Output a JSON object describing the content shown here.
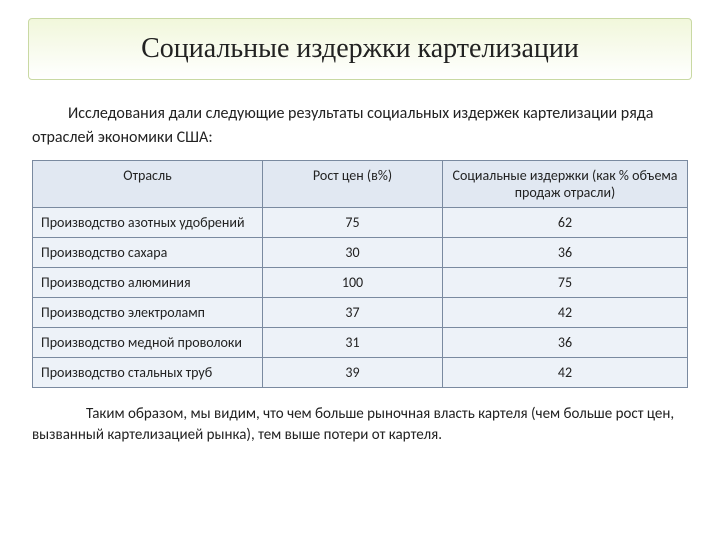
{
  "title": "Социальные издержки картелизации",
  "intro": "Исследования дали следующие результаты социальных издержек картелизации ряда отраслей экономики США:",
  "table": {
    "columns": [
      "Отрасль",
      "Рост цен (в%)",
      "Социальные издержки (как % объема продаж отрасли)"
    ],
    "rows": [
      [
        "Производство азотных удобрений",
        "75",
        "62"
      ],
      [
        "Производство сахара",
        "30",
        "36"
      ],
      [
        "Производство алюминия",
        "100",
        "75"
      ],
      [
        "Производство электроламп",
        "37",
        "42"
      ],
      [
        "Производство медной проволоки",
        "31",
        "36"
      ],
      [
        "Производство стальных труб",
        "39",
        "42"
      ]
    ],
    "header_bg": "#e1e8f2",
    "cell_bg": "#edf2f8",
    "border_color": "#7a8aa0",
    "font_size": 14
  },
  "conclusion": "Таким образом, мы видим, что чем больше рыночная власть картеля (чем больше рост цен, вызванный картелизацией рынка), тем выше потери от картеля.",
  "styling": {
    "title_bg_gradient_from": "#f1f7db",
    "title_bg_gradient_to": "#ffffff",
    "title_border": "#c9d9a3",
    "title_fontsize": 28,
    "body_fontsize": 16,
    "conclusion_fontsize": 15,
    "page_bg": "#ffffff"
  }
}
